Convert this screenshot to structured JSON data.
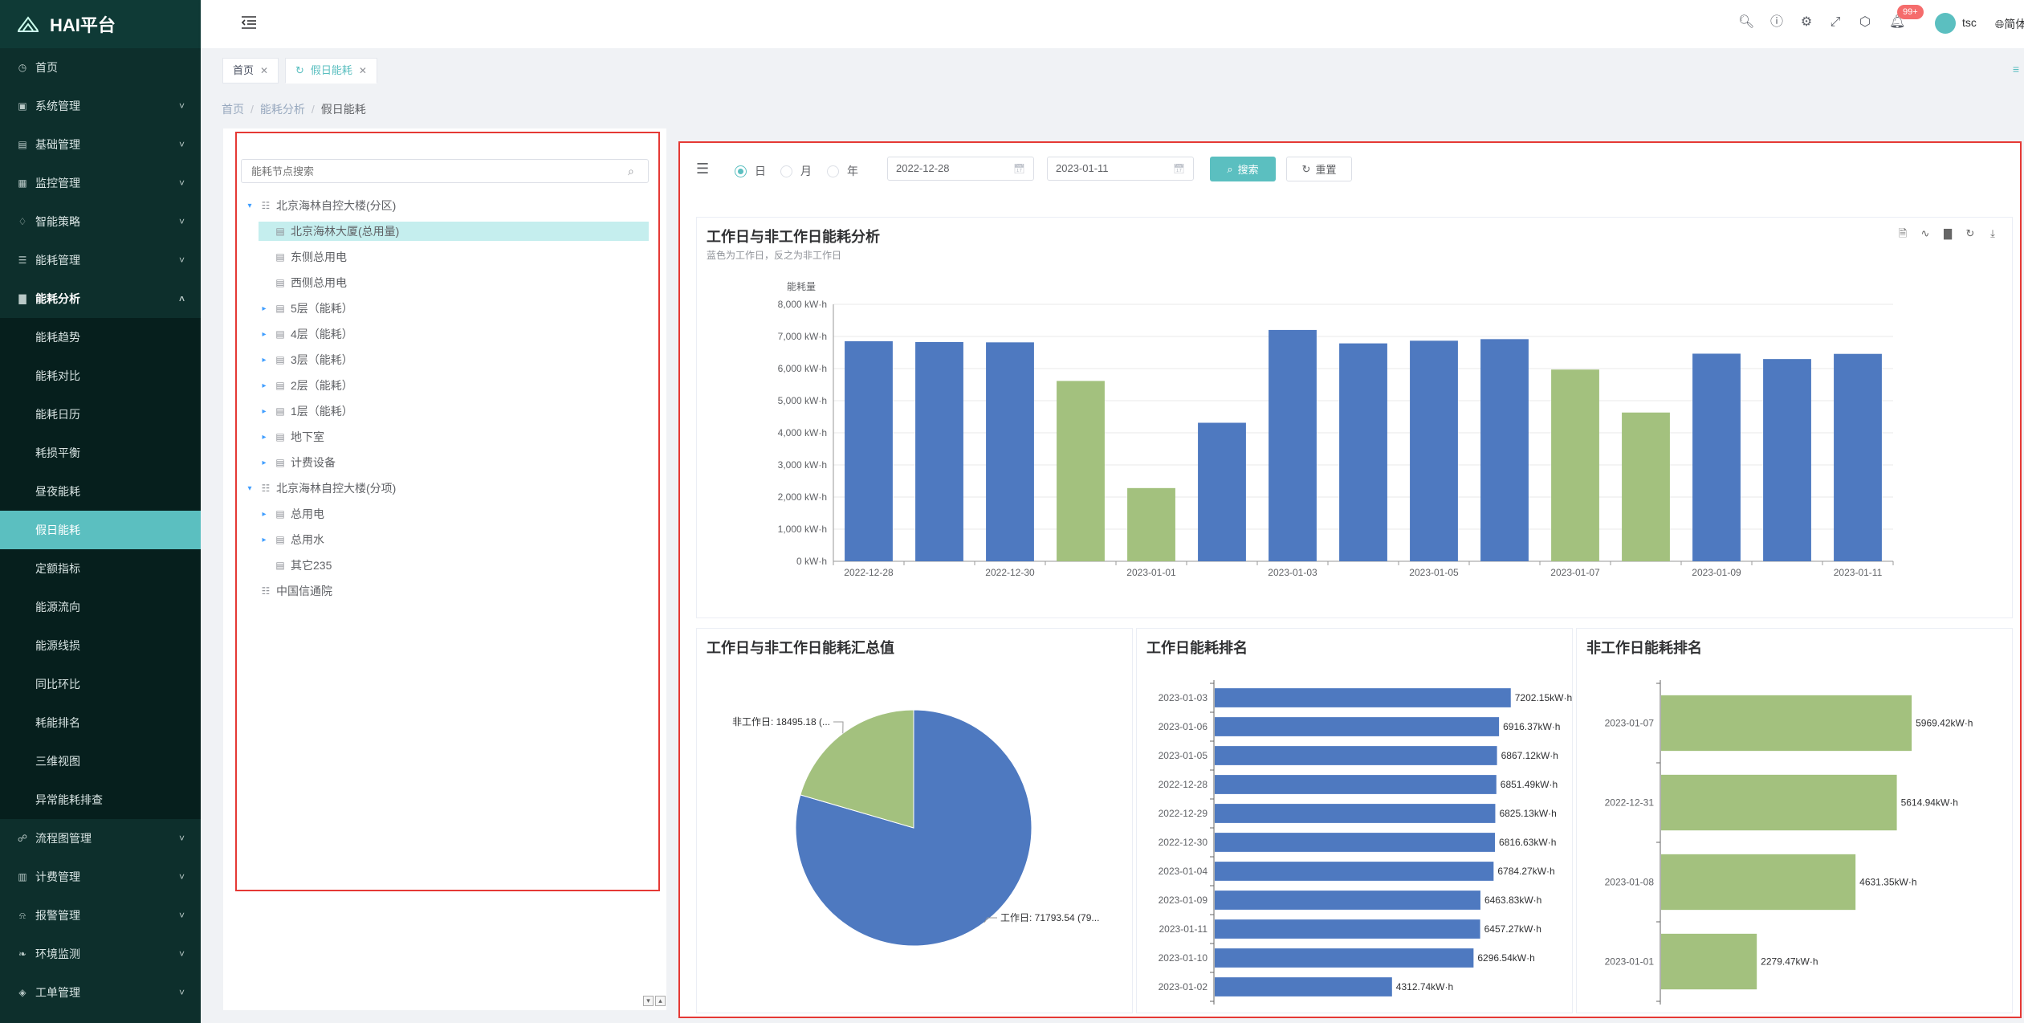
{
  "app": {
    "title": "HAI平台"
  },
  "sidebar": {
    "items": [
      {
        "label": "首页",
        "icon": "dashboard-icon",
        "arrow": false
      },
      {
        "label": "系统管理",
        "icon": "system-icon",
        "arrow": true
      },
      {
        "label": "基础管理",
        "icon": "base-icon",
        "arrow": true
      },
      {
        "label": "监控管理",
        "icon": "monitor-icon",
        "arrow": true
      },
      {
        "label": "智能策略",
        "icon": "bulb-icon",
        "arrow": true
      },
      {
        "label": "能耗管理",
        "icon": "list-icon",
        "arrow": true
      }
    ],
    "open_item": {
      "label": "能耗分析",
      "icon": "chart-icon"
    },
    "sub_items": [
      "能耗趋势",
      "能耗对比",
      "能耗日历",
      "耗损平衡",
      "昼夜能耗",
      "假日能耗",
      "定额指标",
      "能源流向",
      "能源线损",
      "同比环比",
      "耗能排名",
      "三维视图",
      "异常能耗排查"
    ],
    "active_sub": "假日能耗",
    "bottom_items": [
      {
        "label": "流程图管理",
        "icon": "flow-icon"
      },
      {
        "label": "计费管理",
        "icon": "billing-icon"
      },
      {
        "label": "报警管理",
        "icon": "alarm-icon"
      },
      {
        "label": "环境监测",
        "icon": "leaf-icon"
      },
      {
        "label": "工单管理",
        "icon": "ticket-icon"
      }
    ]
  },
  "header": {
    "badge": "99+",
    "username": "tsc",
    "lang": "简体"
  },
  "tabs": [
    {
      "label": "首页"
    },
    {
      "label": "假日能耗"
    }
  ],
  "breadcrumb": [
    "首页",
    "能耗分析",
    "假日能耗"
  ],
  "tree": {
    "placeholder": "能耗节点搜索",
    "nodes": [
      {
        "label": "北京海林自控大楼(分区)",
        "level": 0,
        "expand": "open"
      },
      {
        "label": "北京海林大厦(总用量)",
        "level": 1,
        "expand": "none",
        "selected": true
      },
      {
        "label": "东侧总用电",
        "level": 1,
        "expand": "none"
      },
      {
        "label": "西侧总用电",
        "level": 1,
        "expand": "none"
      },
      {
        "label": "5层（能耗）",
        "level": 1,
        "expand": "closed"
      },
      {
        "label": "4层（能耗）",
        "level": 1,
        "expand": "closed"
      },
      {
        "label": "3层（能耗）",
        "level": 1,
        "expand": "closed"
      },
      {
        "label": "2层（能耗）",
        "level": 1,
        "expand": "closed"
      },
      {
        "label": "1层（能耗）",
        "level": 1,
        "expand": "closed"
      },
      {
        "label": "地下室",
        "level": 1,
        "expand": "closed"
      },
      {
        "label": "计费设备",
        "level": 1,
        "expand": "closed"
      },
      {
        "label": "北京海林自控大楼(分项)",
        "level": 0,
        "expand": "open"
      },
      {
        "label": "总用电",
        "level": 1,
        "expand": "closed"
      },
      {
        "label": "总用水",
        "level": 1,
        "expand": "closed"
      },
      {
        "label": "其它235",
        "level": 1,
        "expand": "none"
      },
      {
        "label": "中国信通院",
        "level": 0,
        "expand": "none"
      }
    ]
  },
  "filter": {
    "radios": [
      {
        "label": "日",
        "checked": true
      },
      {
        "label": "月",
        "checked": false
      },
      {
        "label": "年",
        "checked": false
      }
    ],
    "start_date": "2022-12-28",
    "end_date": "2023-01-11",
    "search_label": "搜索",
    "reset_label": "重置"
  },
  "colors": {
    "workday": "#4e79c0",
    "holiday": "#a3c17e",
    "accent": "#5bbfc0",
    "outline": "#e53935"
  },
  "chart_data": [
    {
      "type": "bar",
      "title": "工作日与非工作日能耗分析",
      "subtitle": "蓝色为工作日，反之为非工作日",
      "ylabel": "能耗量",
      "ylim": [
        0,
        8000
      ],
      "yticks": [
        "0 kW·h",
        "1,000 kW·h",
        "2,000 kW·h",
        "3,000 kW·h",
        "4,000 kW·h",
        "5,000 kW·h",
        "6,000 kW·h",
        "7,000 kW·h",
        "8,000 kW·h"
      ],
      "categories": [
        "2022-12-28",
        "2022-12-29",
        "2022-12-30",
        "2022-12-31",
        "2023-01-01",
        "2023-01-02",
        "2023-01-03",
        "2023-01-04",
        "2023-01-05",
        "2023-01-06",
        "2023-01-07",
        "2023-01-08",
        "2023-01-09",
        "2023-01-10",
        "2023-01-11"
      ],
      "xtick_labels": [
        "2022-12-28",
        "",
        "2022-12-30",
        "",
        "2023-01-01",
        "",
        "2023-01-03",
        "",
        "2023-01-05",
        "",
        "2023-01-07",
        "",
        "2023-01-09",
        "",
        "2023-01-11"
      ],
      "values": [
        6851.49,
        6825.13,
        6816.63,
        5614.94,
        2279.47,
        4312.74,
        7202.15,
        6784.27,
        6867.12,
        6916.37,
        5969.42,
        4631.35,
        6463.83,
        6296.54,
        6457.27
      ],
      "workday": [
        true,
        true,
        true,
        false,
        false,
        true,
        true,
        true,
        true,
        true,
        false,
        false,
        true,
        true,
        true
      ],
      "grid": true
    },
    {
      "type": "pie",
      "title": "工作日与非工作日能耗汇总值",
      "slices": [
        {
          "name": "工作日",
          "value": 71793.54,
          "label": "工作日: 71793.54 (79...",
          "color": "#4e79c0"
        },
        {
          "name": "非工作日",
          "value": 18495.18,
          "label": "非工作日: 18495.18 (...",
          "color": "#a3c17e"
        }
      ]
    },
    {
      "type": "bar",
      "orientation": "horizontal",
      "title": "工作日能耗排名",
      "categories": [
        "2023-01-03",
        "2023-01-06",
        "2023-01-05",
        "2022-12-28",
        "2022-12-29",
        "2022-12-30",
        "2023-01-04",
        "2023-01-09",
        "2023-01-11",
        "2023-01-10",
        "2023-01-02"
      ],
      "values": [
        7202.15,
        6916.37,
        6867.12,
        6851.49,
        6825.13,
        6816.63,
        6784.27,
        6463.83,
        6457.27,
        6296.54,
        4312.74
      ],
      "value_labels": [
        "7202.15kW·h",
        "6916.37kW·h",
        "6867.12kW·h",
        "6851.49kW·h",
        "6825.13kW·h",
        "6816.63kW·h",
        "6784.27kW·h",
        "6463.83kW·h",
        "6457.27kW·h",
        "6296.54kW·h",
        "4312.74kW·h"
      ],
      "xlim": [
        0,
        7500
      ],
      "color": "#4e79c0"
    },
    {
      "type": "bar",
      "orientation": "horizontal",
      "title": "非工作日能耗排名",
      "categories": [
        "2023-01-07",
        "2022-12-31",
        "2023-01-08",
        "2023-01-01"
      ],
      "values": [
        5969.42,
        5614.94,
        4631.35,
        2279.47
      ],
      "value_labels": [
        "5969.42kW·h",
        "5614.94kW·h",
        "4631.35kW·h",
        "2279.47kW·h"
      ],
      "xlim": [
        0,
        7000
      ],
      "color": "#a3c17e"
    }
  ]
}
